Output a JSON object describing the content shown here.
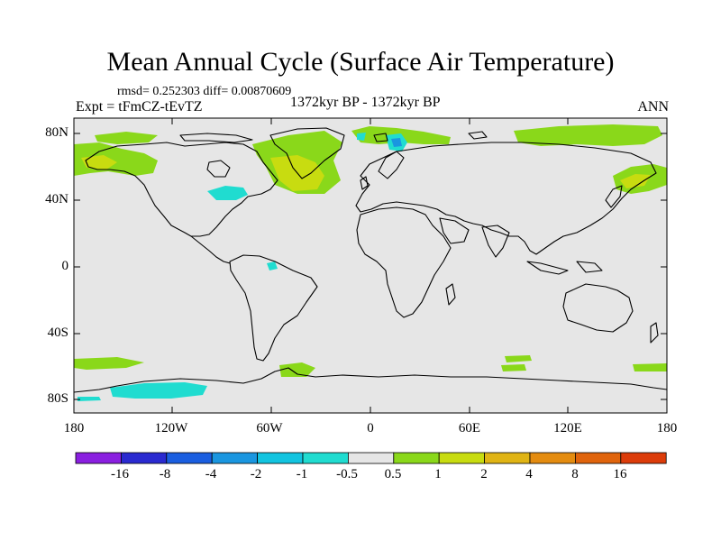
{
  "title": "Mean Annual Cycle (Surface Air Temperature)",
  "stats": "rmsd= 0.252303 diff= 0.00870609",
  "experiment": "Expt = tFmCZ-tEvTZ",
  "period": "1372kyr BP - 1372kyr BP",
  "season": "ANN",
  "y_ticks": [
    "80N",
    "40N",
    "0",
    "40S",
    "80S"
  ],
  "x_ticks": [
    "180",
    "120W",
    "60W",
    "0",
    "60E",
    "120E",
    "180"
  ],
  "colorbar": {
    "labels": [
      "-16",
      "-8",
      "-4",
      "-2",
      "-1",
      "-0.5",
      "0.5",
      "1",
      "2",
      "4",
      "8",
      "16"
    ],
    "colors": [
      "#8a1fe0",
      "#2a2ad0",
      "#1a5ee0",
      "#1a96e0",
      "#12c4e0",
      "#20dcd0",
      "#e6e6e6",
      "#8ad81a",
      "#c8dc10",
      "#e0b414",
      "#e48c10",
      "#e0640c",
      "#dc3c0a"
    ]
  },
  "colors": {
    "neutral": "#e6e6e6",
    "green": "#8ad81a",
    "yellow_green": "#c8dc10",
    "cyan": "#20dcd0",
    "light_blue": "#12c4e0"
  }
}
